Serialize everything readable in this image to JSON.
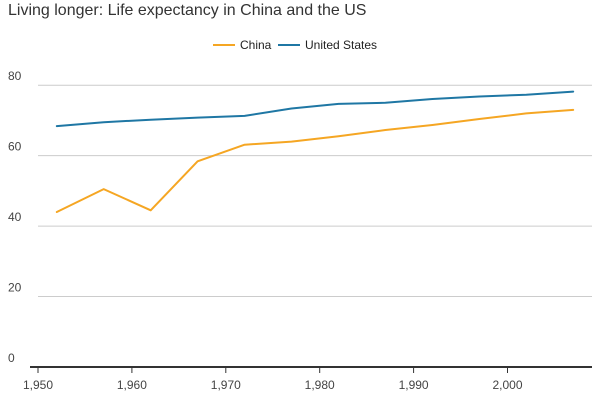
{
  "chart_data": {
    "type": "line",
    "title": "Living longer: Life expectancy in China and the US",
    "xlabel": "",
    "ylabel": "",
    "xlim": [
      1950,
      2009
    ],
    "ylim": [
      0,
      90
    ],
    "x_ticks": [
      1950,
      1960,
      1970,
      1980,
      1990,
      2000
    ],
    "x_tick_labels": [
      "1,950",
      "1,960",
      "1,970",
      "1,980",
      "1,990",
      "2,000"
    ],
    "y_ticks": [
      0,
      20,
      40,
      60,
      80
    ],
    "y_tick_labels": [
      "0",
      "20",
      "40",
      "60",
      "80"
    ],
    "grid": true,
    "legend_position": "top-center",
    "x": [
      1952,
      1957,
      1962,
      1967,
      1972,
      1977,
      1982,
      1987,
      1992,
      1997,
      2002,
      2007
    ],
    "series": [
      {
        "name": "China",
        "color": "#f5a623",
        "values": [
          44.0,
          50.5,
          44.5,
          58.4,
          63.1,
          64.0,
          65.5,
          67.3,
          68.7,
          70.4,
          72.0,
          73.0
        ]
      },
      {
        "name": "United States",
        "color": "#1f77a4",
        "values": [
          68.4,
          69.5,
          70.2,
          70.8,
          71.3,
          73.4,
          74.7,
          75.0,
          76.1,
          76.8,
          77.3,
          78.2
        ]
      }
    ]
  }
}
